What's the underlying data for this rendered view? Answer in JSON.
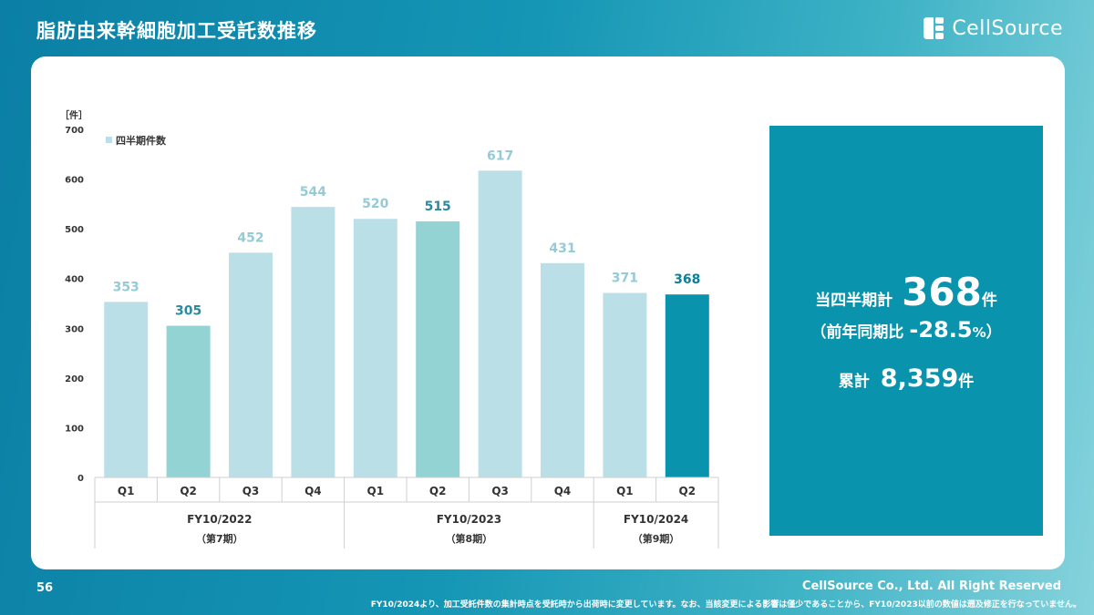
{
  "slide": {
    "title": "脂肪由来幹細胞加工受託数推移",
    "brand": "CellSource",
    "page_number": "56",
    "copyright": "CellSource Co., Ltd. All Right Reserved",
    "footnote": "FY10/2024より、加工受託件数の集計時点を受託時から出荷時に変更しています。なお、当該変更による影響は僅少であることから、FY10/2023以前の数値は遡及修正を行なっていません。"
  },
  "summary": {
    "quarter_label": "当四半期計",
    "quarter_value": "368",
    "quarter_unit": "件",
    "yoy_prefix": "（前年同期比",
    "yoy_value": "-28.5",
    "yoy_pct": "%",
    "yoy_suffix": "）",
    "cumulative_label": "累計",
    "cumulative_value": "8,359",
    "cumulative_unit": "件"
  },
  "colors": {
    "bar_light": "#badfe6",
    "bar_mid": "#93d3d3",
    "bar_dark": "#0a93ad",
    "label_light": "#94cbd6",
    "label_mid": "#2a8a9e",
    "label_dark": "#0a7f9a"
  },
  "chart_data": {
    "type": "bar",
    "ylabel": "［件］",
    "ylim": [
      0,
      700
    ],
    "yticks": [
      0,
      100,
      200,
      300,
      400,
      500,
      600,
      700
    ],
    "legend": "四半期件数",
    "legend_position": "top-left",
    "categories": [
      "Q1",
      "Q2",
      "Q3",
      "Q4",
      "Q1",
      "Q2",
      "Q3",
      "Q4",
      "Q1",
      "Q2"
    ],
    "values": [
      353,
      305,
      452,
      544,
      520,
      515,
      617,
      431,
      371,
      368
    ],
    "bar_styles": [
      "light",
      "mid",
      "light",
      "light",
      "light",
      "mid",
      "light",
      "light",
      "light",
      "dark"
    ],
    "groups": [
      {
        "label": "FY10/2022",
        "sublabel": "（第7期）",
        "count": 4
      },
      {
        "label": "FY10/2023",
        "sublabel": "（第8期）",
        "count": 4
      },
      {
        "label": "FY10/2024",
        "sublabel": "（第9期）",
        "count": 2
      }
    ]
  }
}
